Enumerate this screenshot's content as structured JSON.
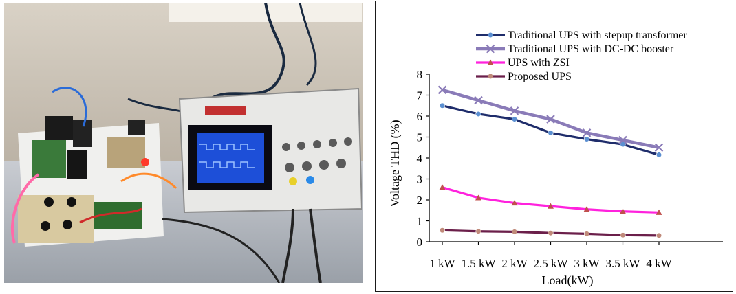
{
  "chart_data": {
    "type": "line",
    "title": "",
    "xlabel": "Load(kW)",
    "ylabel": "Voltage THD (%)",
    "categories": [
      "1 kW",
      "1.5 kW",
      "2 kW",
      "2.5 kW",
      "3 kW",
      "3.5 kW",
      "4 kW"
    ],
    "ylim": [
      0,
      8
    ],
    "yticks": [
      "0",
      "1",
      "2",
      "3",
      "4",
      "5",
      "6",
      "7",
      "8"
    ],
    "grid": false,
    "legend_position": "top-right",
    "series": [
      {
        "name": "Traditional UPS with stepup transformer",
        "color": "#1f2d6b",
        "marker": "circle",
        "marker_color": "#5b8fd1",
        "values": [
          6.5,
          6.1,
          5.85,
          5.2,
          4.9,
          4.65,
          4.15
        ]
      },
      {
        "name": "Traditional UPS with DC-DC booster",
        "color": "#8a7bb8",
        "marker": "x",
        "marker_color": "#8a7bb8",
        "values": [
          7.25,
          6.75,
          6.25,
          5.85,
          5.2,
          4.85,
          4.5
        ]
      },
      {
        "name": "UPS with ZSI",
        "color": "#ff22dd",
        "marker": "triangle",
        "marker_color": "#c0504d",
        "values": [
          2.6,
          2.1,
          1.85,
          1.7,
          1.55,
          1.45,
          1.4
        ]
      },
      {
        "name": "Proposed UPS",
        "color": "#6b1f4a",
        "marker": "circle",
        "marker_color": "#c08a7a",
        "values": [
          0.55,
          0.5,
          0.48,
          0.42,
          0.38,
          0.32,
          0.3
        ]
      }
    ]
  }
}
